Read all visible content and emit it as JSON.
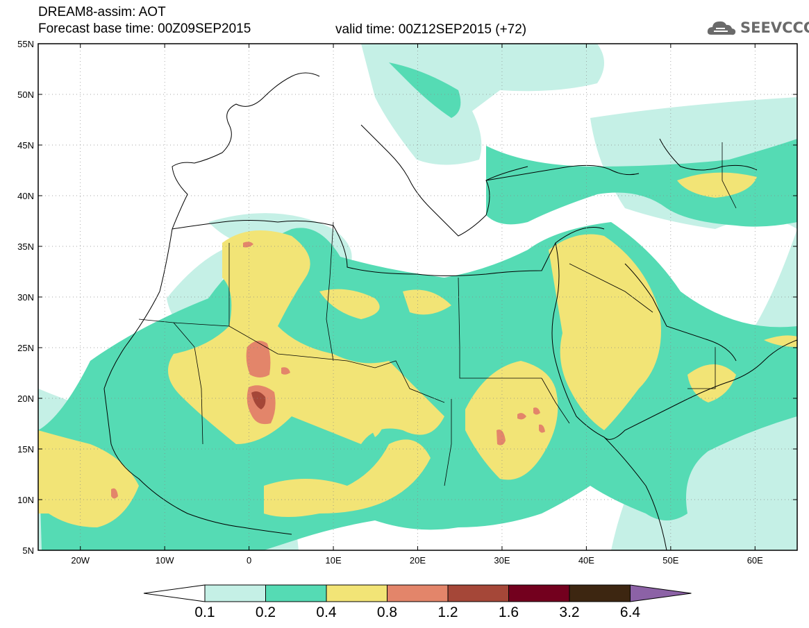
{
  "header": {
    "line1": "DREAM8-assim: AOT",
    "line2": "Forecast base time: 00Z09SEP2015",
    "valid": "valid time: 00Z12SEP2015 (+72)"
  },
  "logo": {
    "text": "SEEVCCC",
    "icon": "cloud-icon"
  },
  "axes": {
    "lat_labels": [
      "55N",
      "50N",
      "45N",
      "40N",
      "35N",
      "30N",
      "25N",
      "20N",
      "15N",
      "10N",
      "5N"
    ],
    "lat_values": [
      55,
      50,
      45,
      40,
      35,
      30,
      25,
      20,
      15,
      10,
      5
    ],
    "lon_labels": [
      "20W",
      "10W",
      "0",
      "10E",
      "20E",
      "30E",
      "40E",
      "50E",
      "60E"
    ],
    "lon_values": [
      -20,
      -10,
      0,
      10,
      20,
      30,
      40,
      50,
      60
    ],
    "lon_range": [
      -25,
      65
    ],
    "lat_range": [
      5,
      55
    ]
  },
  "colorbar": {
    "labels": [
      "0.1",
      "0.2",
      "0.4",
      "0.8",
      "1.2",
      "1.6",
      "3.2",
      "6.4"
    ],
    "colors": [
      "#ffffff",
      "#c5f0e6",
      "#55dbb4",
      "#f2e476",
      "#e3856a",
      "#a54738",
      "#73001e",
      "#3d2611",
      "#8c62a6"
    ]
  },
  "palette": {
    "c1": "#c5f0e6",
    "c2": "#55dbb4",
    "c3": "#f2e476",
    "c4": "#e3856a",
    "c5": "#a54738"
  }
}
